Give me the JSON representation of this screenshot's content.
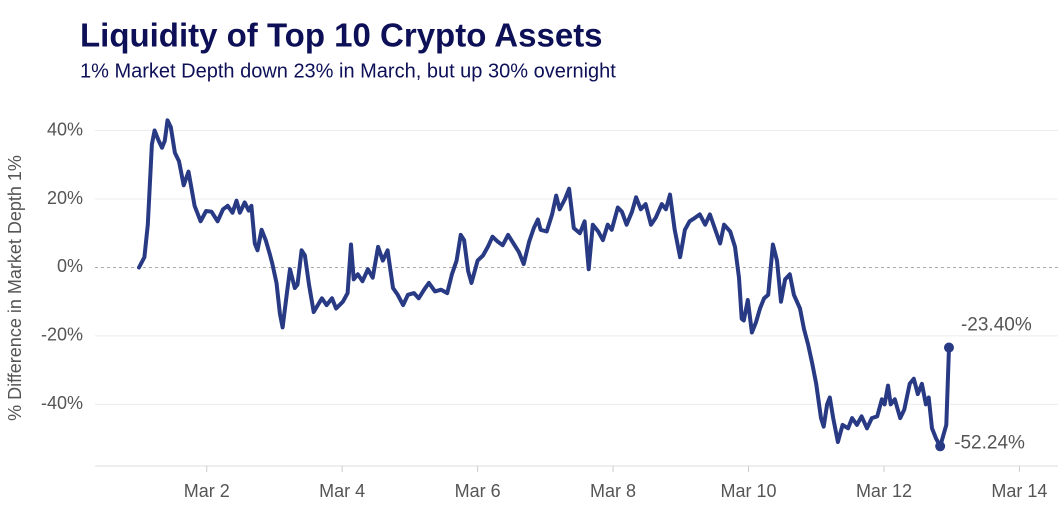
{
  "chart_data": {
    "type": "line",
    "title": "Liquidity of Top 10 Crypto Assets",
    "subtitle": "1% Market Depth down 23% in March, but up 30% overnight",
    "y_label": "% Difference in Market Depth 1%",
    "xlim": [
      0.35,
      14.57
    ],
    "xticks": [
      {
        "value": 2,
        "label": "Mar 2"
      },
      {
        "value": 4,
        "label": "Mar 4"
      },
      {
        "value": 6,
        "label": "Mar 6"
      },
      {
        "value": 8,
        "label": "Mar 8"
      },
      {
        "value": 10,
        "label": "Mar 10"
      },
      {
        "value": 12,
        "label": "Mar 12"
      },
      {
        "value": 14,
        "label": "Mar 14"
      }
    ],
    "ylim": [
      -58,
      46
    ],
    "yticks": [
      {
        "value": -40,
        "label": "-40%"
      },
      {
        "value": -20,
        "label": "-20%"
      },
      {
        "value": 0,
        "label": "0%"
      },
      {
        "value": 20,
        "label": "20%"
      },
      {
        "value": 40,
        "label": "40%"
      }
    ],
    "grid": true,
    "zero_line": true,
    "x": [
      1.0,
      1.08,
      1.13,
      1.19,
      1.23,
      1.29,
      1.34,
      1.38,
      1.42,
      1.47,
      1.53,
      1.59,
      1.66,
      1.73,
      1.82,
      1.91,
      1.99,
      2.07,
      2.16,
      2.24,
      2.31,
      2.38,
      2.44,
      2.49,
      2.56,
      2.62,
      2.66,
      2.71,
      2.75,
      2.81,
      2.87,
      2.93,
      2.97,
      3.03,
      3.08,
      3.12,
      3.18,
      3.23,
      3.3,
      3.34,
      3.4,
      3.45,
      3.51,
      3.58,
      3.64,
      3.7,
      3.77,
      3.85,
      3.91,
      4.01,
      4.08,
      4.13,
      4.17,
      4.23,
      4.3,
      4.38,
      4.45,
      4.53,
      4.6,
      4.67,
      4.75,
      4.82,
      4.9,
      4.97,
      5.06,
      5.13,
      5.21,
      5.28,
      5.37,
      5.46,
      5.55,
      5.62,
      5.69,
      5.75,
      5.8,
      5.86,
      5.91,
      6.0,
      6.08,
      6.15,
      6.22,
      6.3,
      6.37,
      6.45,
      6.53,
      6.61,
      6.68,
      6.76,
      6.83,
      6.89,
      6.93,
      7.02,
      7.1,
      7.16,
      7.21,
      7.29,
      7.35,
      7.42,
      7.51,
      7.58,
      7.64,
      7.7,
      7.78,
      7.85,
      7.92,
      7.98,
      8.07,
      8.13,
      8.2,
      8.28,
      8.34,
      8.41,
      8.48,
      8.56,
      8.63,
      8.72,
      8.78,
      8.84,
      8.91,
      8.99,
      9.06,
      9.13,
      9.21,
      9.28,
      9.36,
      9.43,
      9.5,
      9.58,
      9.64,
      9.73,
      9.8,
      9.86,
      9.9,
      9.93,
      9.99,
      10.05,
      10.11,
      10.17,
      10.23,
      10.29,
      10.36,
      10.42,
      10.48,
      10.54,
      10.61,
      10.67,
      10.76,
      10.82,
      10.88,
      10.94,
      11.0,
      11.07,
      11.11,
      11.16,
      11.2,
      11.25,
      11.32,
      11.39,
      11.47,
      11.53,
      11.6,
      11.67,
      11.75,
      11.82,
      11.9,
      11.97,
      12.01,
      12.06,
      12.1,
      12.16,
      12.24,
      12.3,
      12.38,
      12.44,
      12.5,
      12.56,
      12.62,
      12.66,
      12.71,
      12.77,
      12.83,
      12.92,
      12.96
    ],
    "series": [
      {
        "color": "#283a84",
        "values": [
          0,
          3,
          12.5,
          36,
          40,
          37,
          35,
          37,
          43,
          41,
          33.5,
          31,
          24,
          28,
          18,
          13.5,
          16.5,
          16.3,
          13.5,
          17,
          18,
          16,
          19.5,
          16,
          19,
          16.6,
          18,
          7,
          5,
          11,
          8,
          4,
          1,
          -4.5,
          -13.5,
          -17.5,
          -8,
          -0.5,
          -6,
          -5,
          5,
          3.5,
          -5,
          -13,
          -11,
          -9,
          -11,
          -9,
          -12,
          -10,
          -7.5,
          6.7,
          -3.5,
          -2,
          -4,
          -0.5,
          -3,
          6,
          2,
          5,
          -6,
          -8,
          -11,
          -8,
          -7.5,
          -9,
          -6.5,
          -4.5,
          -7,
          -6.5,
          -7.5,
          -2,
          2,
          9.5,
          8,
          -1,
          -4.5,
          2,
          3.5,
          6,
          9,
          7.5,
          6.5,
          9.5,
          7,
          4.5,
          1,
          7.5,
          11.5,
          14,
          11,
          10.5,
          15.5,
          21,
          17,
          20,
          23,
          11.5,
          10,
          13.5,
          -0.5,
          12.5,
          10.5,
          8,
          12.5,
          11,
          17.5,
          16.3,
          12.5,
          16.3,
          20.5,
          17,
          18.5,
          12.5,
          14.5,
          18.5,
          17,
          21.3,
          11,
          3,
          11,
          13.5,
          14.5,
          15.5,
          12.5,
          15.5,
          11.5,
          7,
          12.5,
          10.5,
          6,
          -3,
          -15,
          -15.5,
          -9.5,
          -19,
          -16,
          -12,
          -9,
          -8,
          6.7,
          2,
          -10,
          -3.5,
          -2,
          -8,
          -12,
          -18,
          -22.5,
          -28,
          -34,
          -44,
          -46.5,
          -40,
          -38,
          -44,
          -51,
          -46,
          -47,
          -44,
          -46,
          -43.5,
          -47,
          -44,
          -43.5,
          -38.5,
          -40,
          -34.5,
          -40,
          -38.5,
          -44,
          -41.5,
          -34,
          -32.5,
          -37,
          -34,
          -40,
          -38,
          -47,
          -50,
          -52.24,
          -46,
          -23.4
        ]
      }
    ],
    "annotations": [
      {
        "text": "-23.40%",
        "x": 12.96,
        "y": -23.4
      },
      {
        "text": "-52.24%",
        "x": 12.83,
        "y": -52.24
      }
    ]
  }
}
